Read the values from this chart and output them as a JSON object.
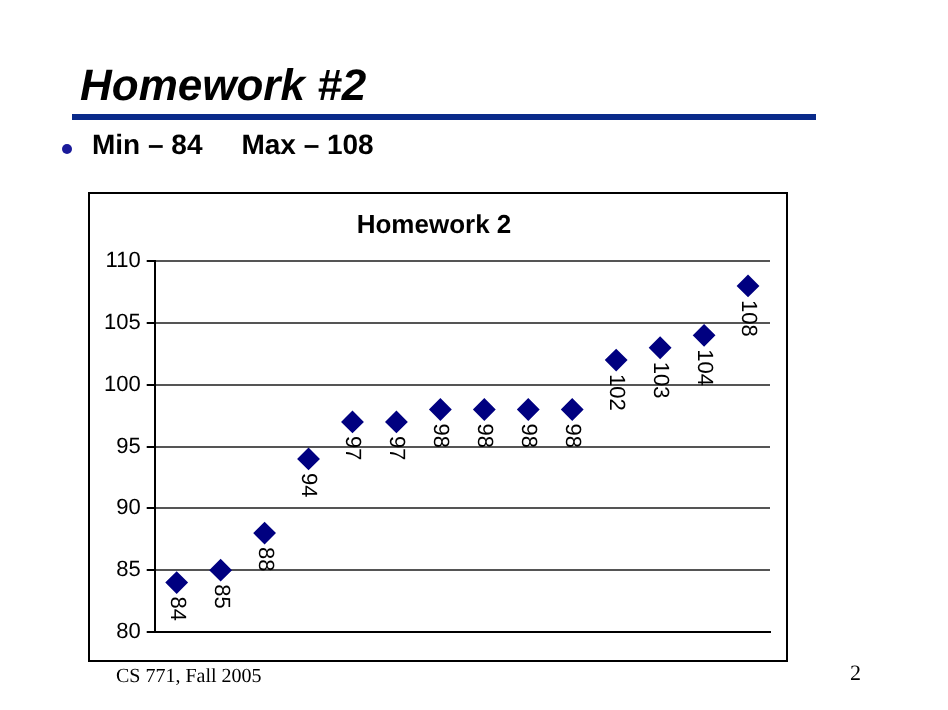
{
  "chart_data": {
    "type": "scatter",
    "title": "Homework 2",
    "annotations": [
      "Homework #2",
      "Min – 84     Max – 108",
      "CS 771, Fall 2005",
      "2"
    ],
    "categories": [
      null,
      null,
      null,
      null,
      null,
      null,
      null,
      null,
      null,
      null,
      null,
      null,
      null,
      null
    ],
    "values": [
      84,
      85,
      88,
      94,
      97,
      97,
      98,
      98,
      98,
      98,
      102,
      103,
      104,
      108
    ],
    "color": "#000080",
    "marker": "diamond",
    "data_labels": true,
    "ylim": [
      80,
      110
    ],
    "yticks": [
      80,
      85,
      90,
      95,
      100,
      105,
      110
    ],
    "grid": "y",
    "legend": false,
    "tick_labels": "y"
  }
}
